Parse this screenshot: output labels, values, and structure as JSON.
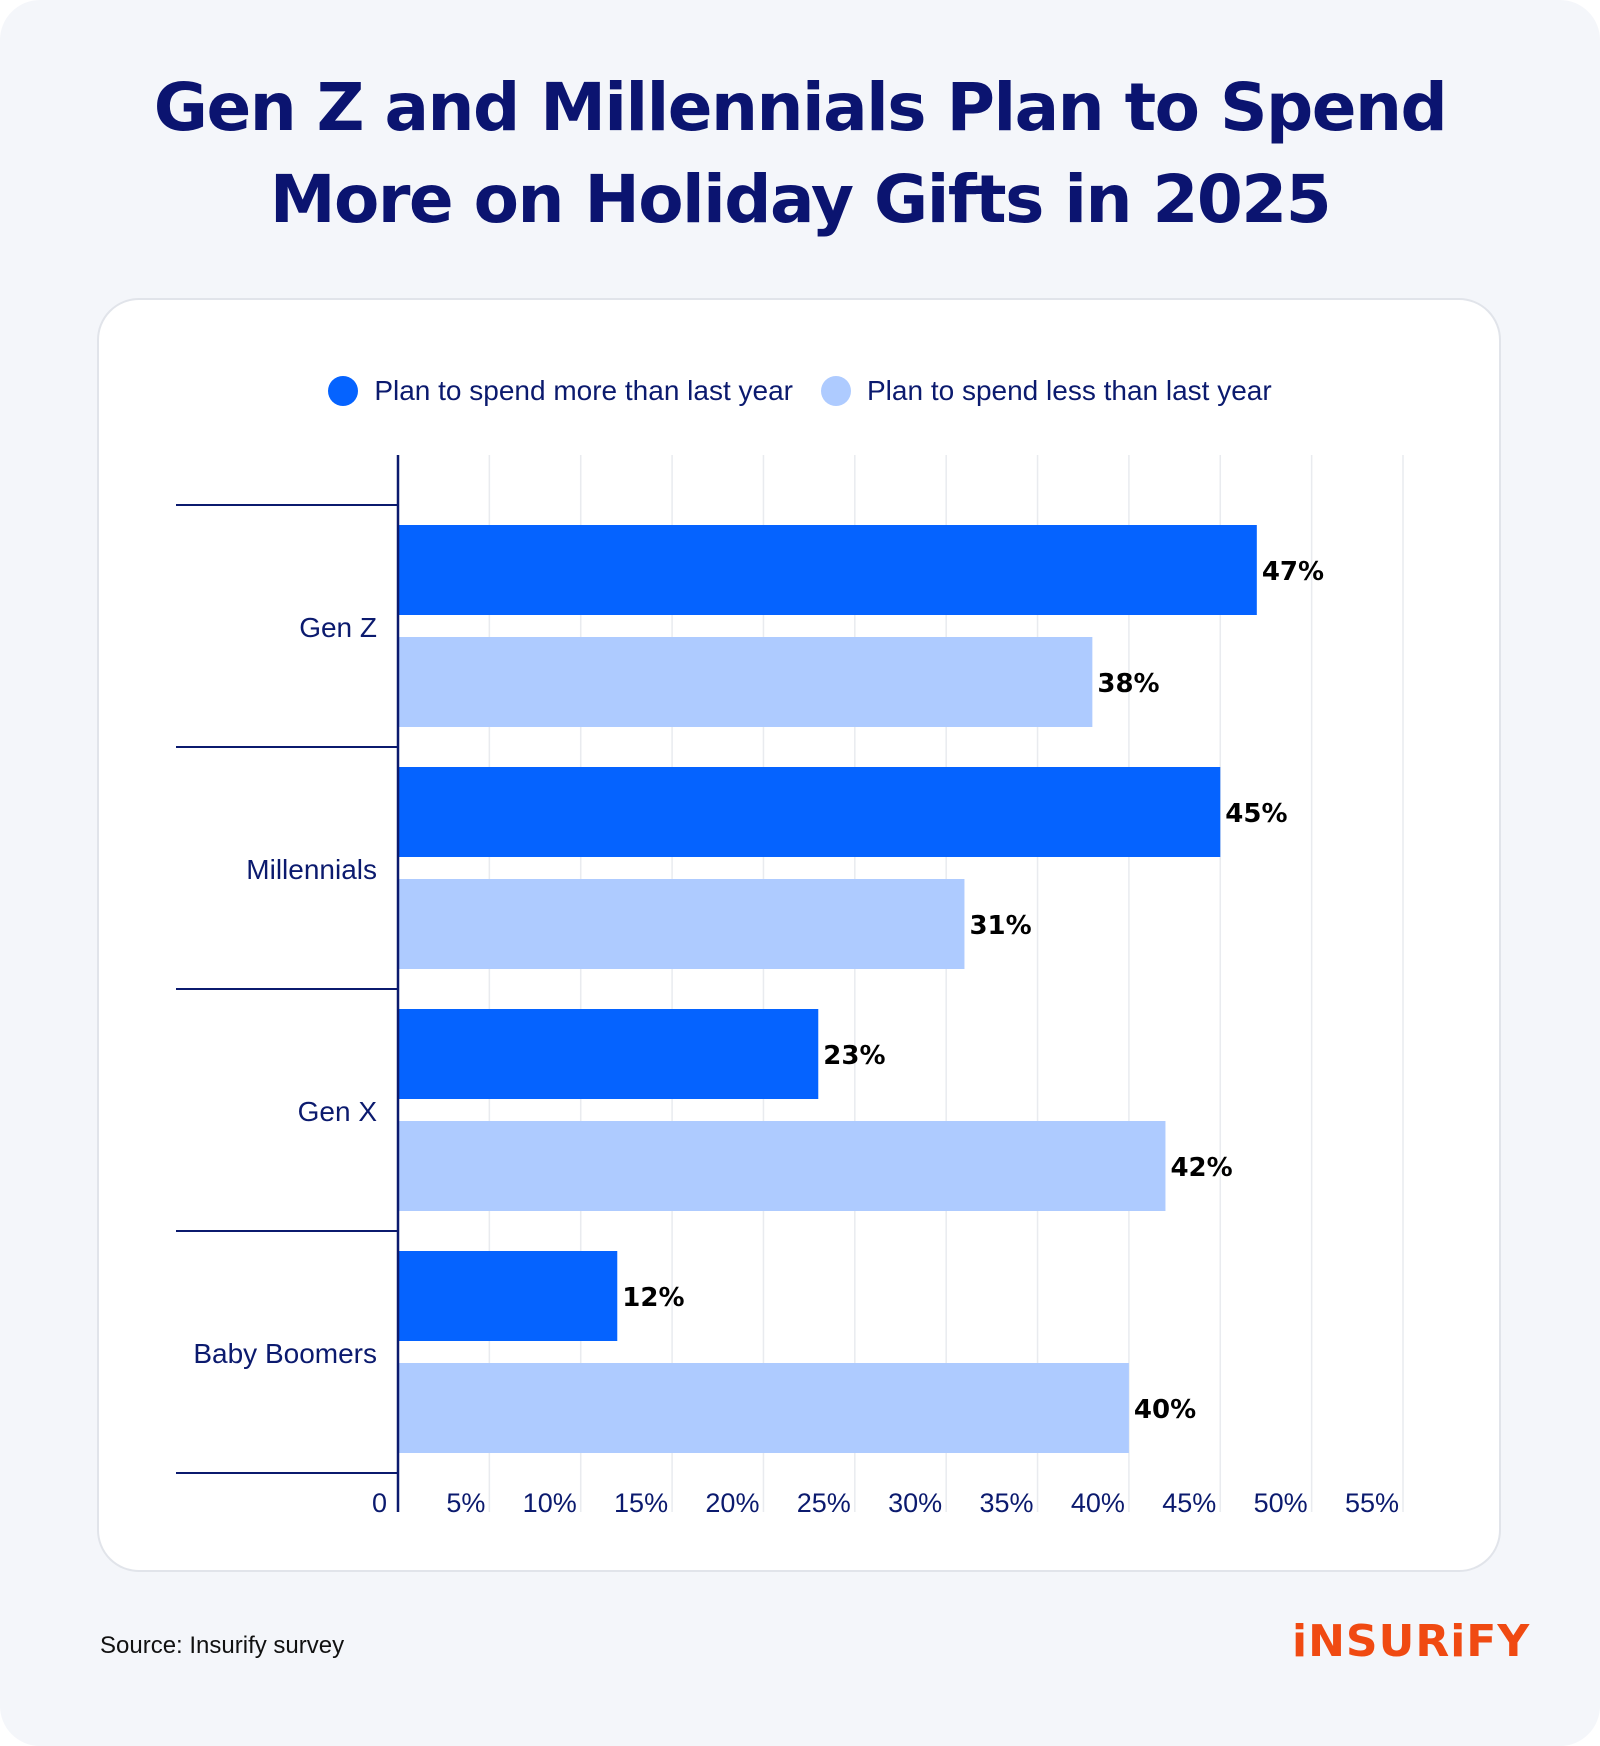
{
  "title": "Gen Z and Millennials Plan to Spend\nMore on Holiday Gifts in 2025",
  "legend": {
    "more": "Plan to spend more than last year",
    "less": "Plan to spend less than last year"
  },
  "source": "Source: Insurify survey",
  "logo": "iNSURiFY",
  "colors": {
    "more": "#0563ff",
    "less": "#aecbff",
    "title": "#0b1470",
    "axis": "#0b1a6e",
    "logo": "#f04a12"
  },
  "chart_data": {
    "type": "bar",
    "orientation": "horizontal",
    "categories": [
      "Gen Z",
      "Millennials",
      "Gen X",
      "Baby Boomers"
    ],
    "series": [
      {
        "name": "Plan to spend more than last year",
        "values": [
          47,
          45,
          23,
          12
        ]
      },
      {
        "name": "Plan to spend less than last year",
        "values": [
          38,
          31,
          42,
          40
        ]
      }
    ],
    "data_labels": [
      [
        "47%",
        "45%",
        "23%",
        "12%"
      ],
      [
        "38%",
        "31%",
        "42%",
        "40%"
      ]
    ],
    "xlim": [
      0,
      55
    ],
    "xticks": [
      0,
      5,
      10,
      15,
      20,
      25,
      30,
      35,
      40,
      45,
      50,
      55
    ],
    "xtick_labels": [
      "0",
      "5%",
      "10%",
      "15%",
      "20%",
      "25%",
      "30%",
      "35%",
      "40%",
      "45%",
      "50%",
      "55%"
    ],
    "grid": true,
    "legend_position": "top-center"
  }
}
